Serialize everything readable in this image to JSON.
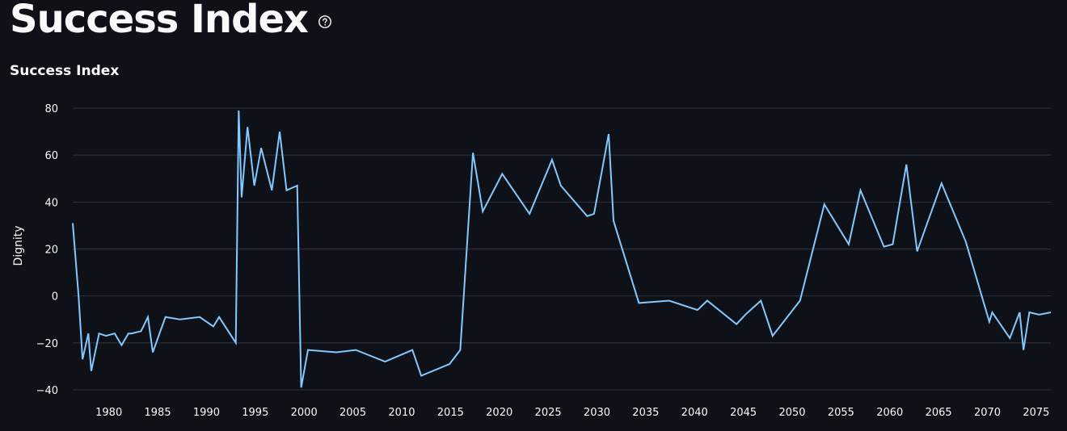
{
  "page": {
    "title": "Success Index",
    "help_icon": "question-circle-icon"
  },
  "chart_data": {
    "type": "line",
    "title": "Success Index",
    "xlabel": "",
    "ylabel": "Dignity",
    "xlim": [
      1976.3,
      2076.5
    ],
    "ylim": [
      -40,
      80
    ],
    "grid": true,
    "line_color": "#83c9ff",
    "x_ticks": [
      1980,
      1985,
      1990,
      1995,
      2000,
      2005,
      2010,
      2015,
      2020,
      2025,
      2030,
      2035,
      2040,
      2045,
      2050,
      2055,
      2060,
      2065,
      2070,
      2075
    ],
    "y_ticks": [
      -40,
      -20,
      0,
      20,
      40,
      60,
      80
    ],
    "series": [
      {
        "name": "Dignity",
        "x": [
          1976.3,
          1976.9,
          1977.3,
          1977.9,
          1978.2,
          1979.0,
          1979.7,
          1980.6,
          1981.3,
          1982.0,
          1982.3,
          1983.3,
          1984.0,
          1984.5,
          1985.8,
          1987.3,
          1989.3,
          1990.7,
          1991.3,
          1993.0,
          1993.3,
          1993.6,
          1994.2,
          1994.9,
          1995.6,
          1996.7,
          1997.5,
          1998.2,
          1999.3,
          1999.7,
          2000.4,
          2003.3,
          2005.3,
          2008.3,
          2011.1,
          2012.0,
          2014.9,
          2016.0,
          2017.3,
          2018.3,
          2020.3,
          2023.1,
          2025.4,
          2026.3,
          2029.0,
          2029.7,
          2031.2,
          2031.7,
          2034.3,
          2037.4,
          2040.3,
          2041.3,
          2044.3,
          2045.2,
          2046.8,
          2048.0,
          2050.8,
          2053.3,
          2055.8,
          2057.0,
          2059.4,
          2060.3,
          2061.7,
          2062.8,
          2065.3,
          2067.8,
          2070.2,
          2070.5,
          2072.3,
          2073.3,
          2073.7,
          2074.3,
          2075.3,
          2076.5
        ],
        "y": [
          31,
          0,
          -27,
          -16,
          -32,
          -16,
          -17,
          -16,
          -21,
          -16,
          -16,
          -15,
          -9,
          -24,
          -9,
          -10,
          -9,
          -13,
          -9,
          -20,
          79,
          42,
          72,
          47,
          63,
          45,
          70,
          45,
          47,
          -39,
          -23,
          -24,
          -23,
          -28,
          -23,
          -34,
          -29,
          -23,
          61,
          36,
          52,
          35,
          58,
          47,
          34,
          35,
          69,
          32,
          -3,
          -2,
          -6,
          -2,
          -12,
          -8,
          -2,
          -17,
          -2,
          39,
          22,
          45,
          21,
          22,
          56,
          19,
          48,
          23,
          -11,
          -7,
          -18,
          -7,
          -23,
          -7,
          -8,
          -7
        ]
      }
    ]
  }
}
